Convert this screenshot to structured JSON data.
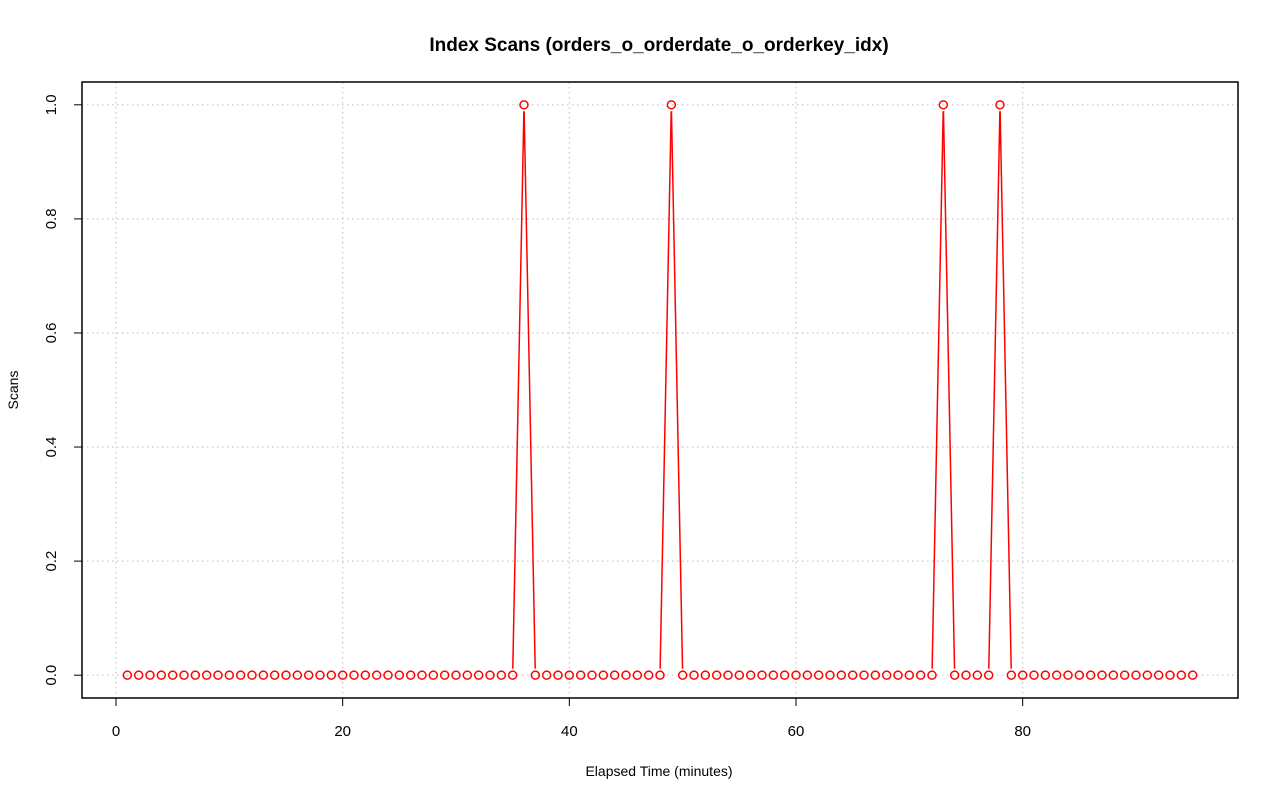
{
  "chart_data": {
    "type": "line",
    "title": "Index Scans (orders_o_orderdate_o_orderkey_idx)",
    "xlabel": "Elapsed Time (minutes)",
    "ylabel": "Scans",
    "xlim": [
      -3,
      99
    ],
    "ylim": [
      -0.04,
      1.04
    ],
    "x_ticks": [
      "0",
      "20",
      "40",
      "60",
      "80"
    ],
    "y_ticks": [
      "0.0",
      "0.2",
      "0.4",
      "0.6",
      "0.8",
      "1.0"
    ],
    "grid": true,
    "series": [
      {
        "color": "#ff0000",
        "marker": "open-circle",
        "x": [
          1,
          2,
          3,
          4,
          5,
          6,
          7,
          8,
          9,
          10,
          11,
          12,
          13,
          14,
          15,
          16,
          17,
          18,
          19,
          20,
          21,
          22,
          23,
          24,
          25,
          26,
          27,
          28,
          29,
          30,
          31,
          32,
          33,
          34,
          35,
          36,
          37,
          38,
          39,
          40,
          41,
          42,
          43,
          44,
          45,
          46,
          47,
          48,
          49,
          50,
          51,
          52,
          53,
          54,
          55,
          56,
          57,
          58,
          59,
          60,
          61,
          62,
          63,
          64,
          65,
          66,
          67,
          68,
          69,
          70,
          71,
          72,
          73,
          74,
          75,
          76,
          77,
          78,
          79,
          80,
          81,
          82,
          83,
          84,
          85,
          86,
          87,
          88,
          89,
          90,
          91,
          92,
          93,
          94,
          95
        ],
        "y": [
          0,
          0,
          0,
          0,
          0,
          0,
          0,
          0,
          0,
          0,
          0,
          0,
          0,
          0,
          0,
          0,
          0,
          0,
          0,
          0,
          0,
          0,
          0,
          0,
          0,
          0,
          0,
          0,
          0,
          0,
          0,
          0,
          0,
          0,
          0,
          1,
          0,
          0,
          0,
          0,
          0,
          0,
          0,
          0,
          0,
          0,
          0,
          0,
          1,
          0,
          0,
          0,
          0,
          0,
          0,
          0,
          0,
          0,
          0,
          0,
          0,
          0,
          0,
          0,
          0,
          0,
          0,
          0,
          0,
          0,
          0,
          0,
          1,
          0,
          0,
          0,
          0,
          1,
          0,
          0,
          0,
          0,
          0,
          0,
          0,
          0,
          0,
          0,
          0,
          0,
          0,
          0,
          0,
          0,
          0
        ]
      }
    ]
  }
}
